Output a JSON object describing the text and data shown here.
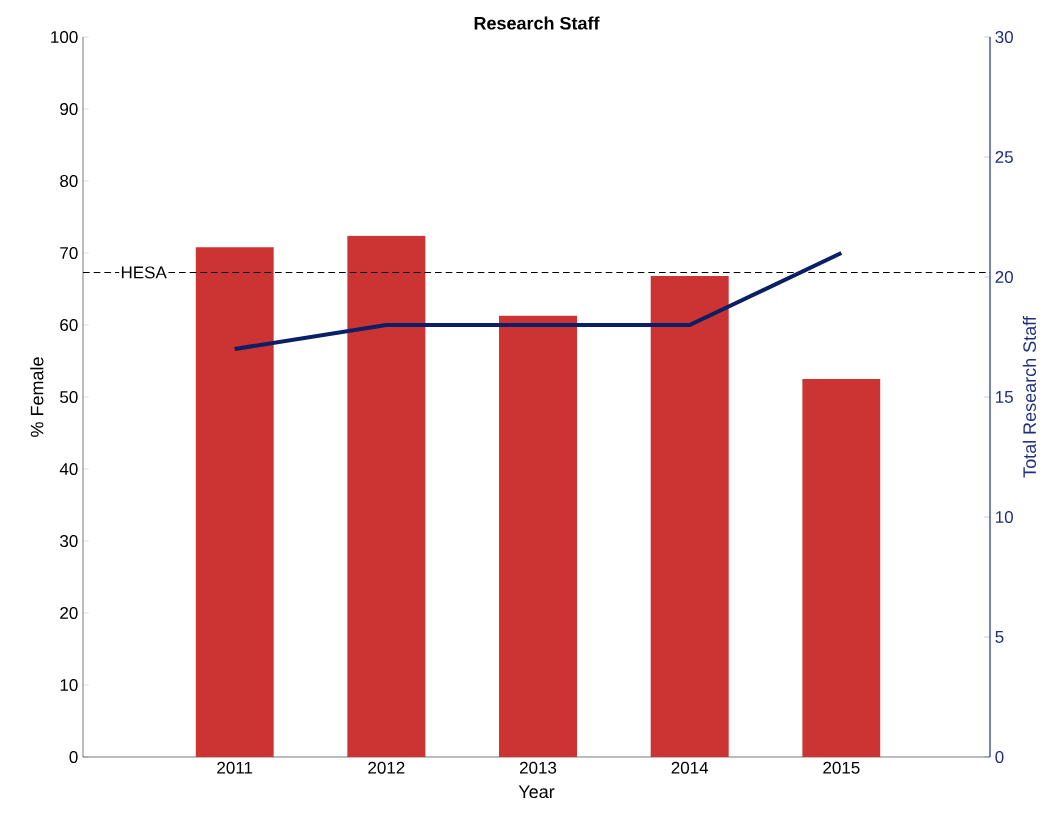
{
  "chart_data": {
    "type": "bar",
    "title": "Research Staff",
    "xlabel": "Year",
    "ylabel": "% Female",
    "y2label": "Total Research Staff",
    "categories": [
      "2011",
      "2012",
      "2013",
      "2014",
      "2015"
    ],
    "series": [
      {
        "type": "bar",
        "color": "#cc3333",
        "values": [
          70.8,
          72.4,
          61.3,
          66.8,
          52.5
        ]
      },
      {
        "type": "line",
        "axis": "y2",
        "color": "#0a1f66",
        "values": [
          17,
          18,
          18,
          18,
          21
        ]
      }
    ],
    "ref_lines": [
      {
        "axis": "y",
        "value": 67.3,
        "label": "HESA",
        "color": "#000000",
        "line_style": "dashed"
      }
    ],
    "ylim": [
      0,
      100
    ],
    "yticks": [
      0,
      10,
      20,
      30,
      40,
      50,
      60,
      70,
      80,
      90,
      100
    ],
    "y2lim": [
      0,
      30
    ],
    "y2ticks": [
      0,
      5,
      10,
      15,
      20,
      25,
      30
    ],
    "grid": false
  }
}
